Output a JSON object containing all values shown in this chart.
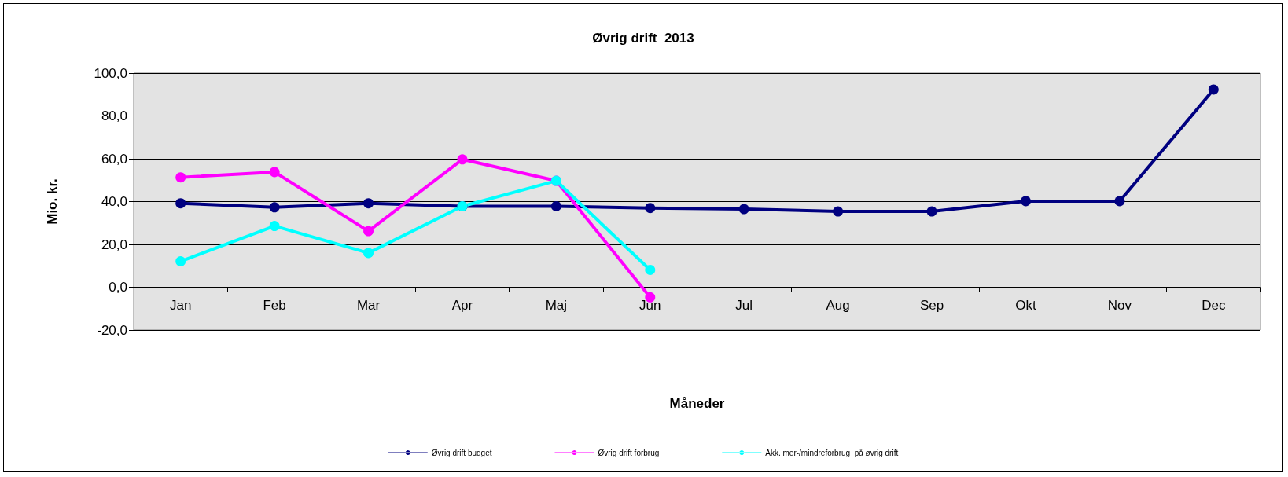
{
  "chart_data": {
    "type": "line",
    "title": "Øvrig drift  2013",
    "xlabel": "Måneder",
    "ylabel": "Mio. kr.",
    "categories": [
      "Jan",
      "Feb",
      "Mar",
      "Apr",
      "Maj",
      "Jun",
      "Jul",
      "Aug",
      "Sep",
      "Okt",
      "Nov",
      "Dec"
    ],
    "series": [
      {
        "name": "Øvrig drift budget",
        "color": "#000080",
        "values": [
          39.2,
          37.3,
          39.2,
          37.8,
          37.8,
          37.0,
          36.5,
          35.4,
          35.4,
          40.2,
          40.2,
          92.3
        ]
      },
      {
        "name": "Øvrig drift forbrug",
        "color": "#ff00ff",
        "values": [
          51.3,
          53.8,
          26.2,
          59.7,
          49.7,
          -4.7,
          null,
          null,
          null,
          null,
          null,
          null
        ]
      },
      {
        "name": "Akk. mer-/mindreforbrug  på øvrig drift",
        "color": "#00ffff",
        "values": [
          12.1,
          28.6,
          16.0,
          37.8,
          49.7,
          8.1,
          null,
          null,
          null,
          null,
          null,
          null
        ]
      }
    ],
    "ylim": [
      -20,
      100
    ],
    "yticks": [
      {
        "value": -20,
        "label": "-20,0"
      },
      {
        "value": 0,
        "label": "0,0"
      },
      {
        "value": 20,
        "label": "20,0"
      },
      {
        "value": 40,
        "label": "40,0"
      },
      {
        "value": 60,
        "label": "60,0"
      },
      {
        "value": 80,
        "label": "80,0"
      },
      {
        "value": 100,
        "label": "100,0"
      }
    ],
    "grid": "y",
    "legend": "bottom",
    "marker": "circle",
    "line_style": "solid"
  }
}
